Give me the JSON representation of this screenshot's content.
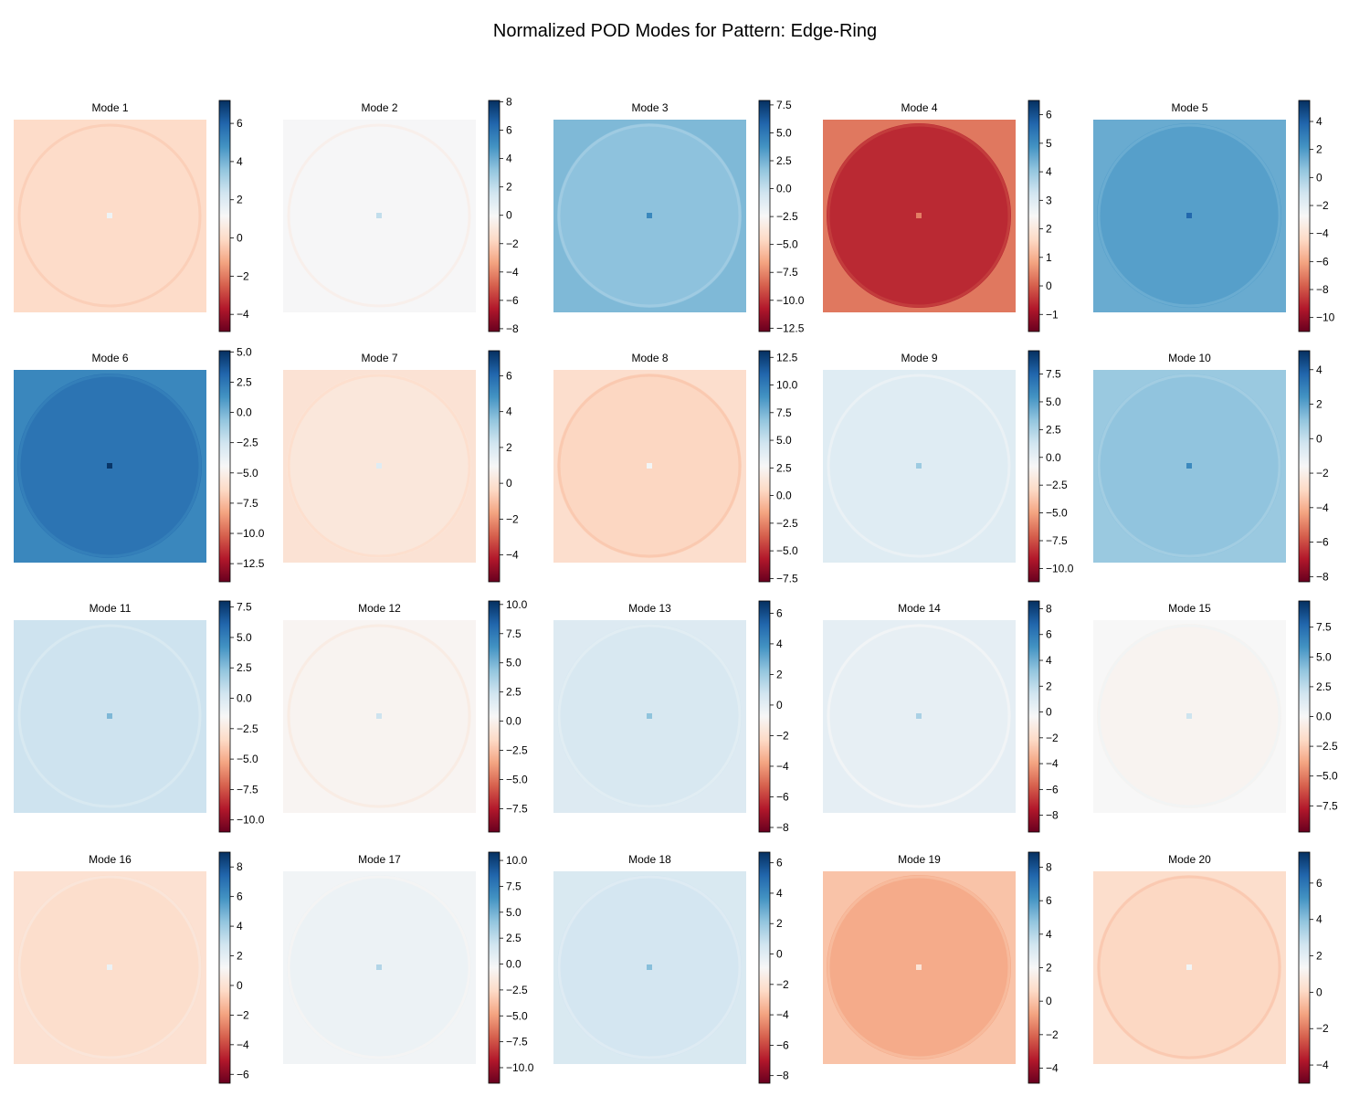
{
  "figure": {
    "title": "Normalized POD Modes for Pattern: Edge-Ring"
  },
  "colormap": {
    "name": "RdBu",
    "stops": [
      "#67001f",
      "#b2182b",
      "#d6604d",
      "#f4a582",
      "#fddbc7",
      "#f7f7f7",
      "#d1e5f0",
      "#92c5de",
      "#4393c3",
      "#2166ac",
      "#053061"
    ]
  },
  "chart_data": [
    {
      "type": "heatmap",
      "title": "Mode 1",
      "vmin": -4.9,
      "vmax": 7.2,
      "background": 0.0,
      "interior": 0.0,
      "colorbar_ticks": [
        6,
        4,
        2,
        0,
        -2,
        -4
      ],
      "colorbar_tick_labels": [
        "6",
        "4",
        "2",
        "0",
        "−2",
        "−4"
      ]
    },
    {
      "type": "heatmap",
      "title": "Mode 2",
      "vmin": -8.2,
      "vmax": 8.1,
      "background": 0.0,
      "interior": 0.0,
      "colorbar_ticks": [
        8,
        6,
        4,
        2,
        0,
        -2,
        -4,
        -6,
        -8
      ],
      "colorbar_tick_labels": [
        "8",
        "6",
        "4",
        "2",
        "0",
        "−2",
        "−4",
        "−6",
        "−8"
      ]
    },
    {
      "type": "heatmap",
      "title": "Mode 3",
      "vmin": -12.8,
      "vmax": 7.9,
      "background": 2.2,
      "interior": 1.8,
      "colorbar_ticks": [
        7.5,
        5.0,
        2.5,
        0.0,
        -2.5,
        -5.0,
        -7.5,
        -10.0,
        -12.5
      ],
      "colorbar_tick_labels": [
        "7.5",
        "5.0",
        "2.5",
        "0.0",
        "−2.5",
        "−5.0",
        "−7.5",
        "−10.0",
        "−12.5"
      ]
    },
    {
      "type": "heatmap",
      "title": "Mode 4",
      "vmin": -1.6,
      "vmax": 6.5,
      "background": 0.3,
      "interior": -0.6,
      "colorbar_ticks": [
        6,
        5,
        4,
        3,
        2,
        1,
        0,
        -1
      ],
      "colorbar_tick_labels": [
        "6",
        "5",
        "4",
        "3",
        "2",
        "1",
        "0",
        "−1"
      ]
    },
    {
      "type": "heatmap",
      "title": "Mode 5",
      "vmin": -11.0,
      "vmax": 5.5,
      "background": 1.4,
      "interior": 1.8,
      "colorbar_ticks": [
        4,
        2,
        0,
        -2,
        -4,
        -6,
        -8,
        -10
      ],
      "colorbar_tick_labels": [
        "4",
        "2",
        "0",
        "−2",
        "−4",
        "−6",
        "−8",
        "−10"
      ]
    },
    {
      "type": "heatmap",
      "title": "Mode 6",
      "vmin": -14.0,
      "vmax": 5.1,
      "background": 1.8,
      "interior": 2.6,
      "colorbar_ticks": [
        5.0,
        2.5,
        0.0,
        -2.5,
        -5.0,
        -7.5,
        -10.0,
        -12.5
      ],
      "colorbar_tick_labels": [
        "5.0",
        "2.5",
        "0.0",
        "−2.5",
        "−5.0",
        "−7.5",
        "−10.0",
        "−12.5"
      ]
    },
    {
      "type": "heatmap",
      "title": "Mode 7",
      "vmin": -5.5,
      "vmax": 7.4,
      "background": 0.0,
      "interior": 0.2,
      "colorbar_ticks": [
        6,
        4,
        2,
        0,
        -2,
        -4
      ],
      "colorbar_tick_labels": [
        "6",
        "4",
        "2",
        "0",
        "−2",
        "−4"
      ]
    },
    {
      "type": "heatmap",
      "title": "Mode 8",
      "vmin": -7.8,
      "vmax": 13.1,
      "background": 0.8,
      "interior": 0.4,
      "colorbar_ticks": [
        12.5,
        10.0,
        7.5,
        5.0,
        2.5,
        0.0,
        -2.5,
        -5.0,
        -7.5
      ],
      "colorbar_tick_labels": [
        "12.5",
        "10.0",
        "7.5",
        "5.0",
        "2.5",
        "0.0",
        "−2.5",
        "−5.0",
        "−7.5"
      ]
    },
    {
      "type": "heatmap",
      "title": "Mode 9",
      "vmin": -11.2,
      "vmax": 9.6,
      "background": 0.5,
      "interior": 0.5,
      "colorbar_ticks": [
        7.5,
        5.0,
        2.5,
        0.0,
        -2.5,
        -5.0,
        -7.5,
        -10.0
      ],
      "colorbar_tick_labels": [
        "7.5",
        "5.0",
        "2.5",
        "0.0",
        "−2.5",
        "−5.0",
        "−7.5",
        "−10.0"
      ]
    },
    {
      "type": "heatmap",
      "title": "Mode 10",
      "vmin": -8.3,
      "vmax": 5.1,
      "background": 0.9,
      "interior": 1.1,
      "colorbar_ticks": [
        4,
        2,
        0,
        -2,
        -4,
        -6,
        -8
      ],
      "colorbar_tick_labels": [
        "4",
        "2",
        "0",
        "−2",
        "−4",
        "−6",
        "−8"
      ]
    },
    {
      "type": "heatmap",
      "title": "Mode 11",
      "vmin": -11.0,
      "vmax": 8.0,
      "background": 0.5,
      "interior": 0.5,
      "colorbar_ticks": [
        7.5,
        5.0,
        2.5,
        0.0,
        -2.5,
        -5.0,
        -7.5,
        -10.0
      ],
      "colorbar_tick_labels": [
        "7.5",
        "5.0",
        "2.5",
        "0.0",
        "−2.5",
        "−5.0",
        "−7.5",
        "−10.0"
      ]
    },
    {
      "type": "heatmap",
      "title": "Mode 12",
      "vmin": -9.5,
      "vmax": 10.3,
      "background": 0.2,
      "interior": 0.1,
      "colorbar_ticks": [
        10.0,
        7.5,
        5.0,
        2.5,
        0.0,
        -2.5,
        -5.0,
        -7.5
      ],
      "colorbar_tick_labels": [
        "10.0",
        "7.5",
        "5.0",
        "2.5",
        "0.0",
        "−2.5",
        "−5.0",
        "−7.5"
      ]
    },
    {
      "type": "heatmap",
      "title": "Mode 13",
      "vmin": -8.3,
      "vmax": 6.8,
      "background": 0.3,
      "interior": 0.5,
      "colorbar_ticks": [
        6,
        4,
        2,
        0,
        -2,
        -4,
        -6,
        -8
      ],
      "colorbar_tick_labels": [
        "6",
        "4",
        "2",
        "0",
        "−2",
        "−4",
        "−6",
        "−8"
      ]
    },
    {
      "type": "heatmap",
      "title": "Mode 14",
      "vmin": -9.3,
      "vmax": 8.6,
      "background": 0.5,
      "interior": 0.4,
      "colorbar_ticks": [
        8,
        6,
        4,
        2,
        0,
        -2,
        -4,
        -6,
        -8
      ],
      "colorbar_tick_labels": [
        "8",
        "6",
        "4",
        "2",
        "0",
        "−2",
        "−4",
        "−6",
        "−8"
      ]
    },
    {
      "type": "heatmap",
      "title": "Mode 15",
      "vmin": -9.7,
      "vmax": 9.7,
      "background": 0.0,
      "interior": -0.3,
      "colorbar_ticks": [
        7.5,
        5.0,
        2.5,
        0.0,
        -2.5,
        -5.0,
        -7.5
      ],
      "colorbar_tick_labels": [
        "7.5",
        "5.0",
        "2.5",
        "0.0",
        "−2.5",
        "−5.0",
        "−7.5"
      ]
    },
    {
      "type": "heatmap",
      "title": "Mode 16",
      "vmin": -6.6,
      "vmax": 9.0,
      "background": 0.0,
      "interior": -0.2,
      "colorbar_ticks": [
        8,
        6,
        4,
        2,
        0,
        -2,
        -4,
        -6
      ],
      "colorbar_tick_labels": [
        "8",
        "6",
        "4",
        "2",
        "0",
        "−2",
        "−4",
        "−6"
      ]
    },
    {
      "type": "heatmap",
      "title": "Mode 17",
      "vmin": -11.5,
      "vmax": 10.8,
      "background": 0.0,
      "interior": 0.3,
      "colorbar_ticks": [
        10.0,
        7.5,
        5.0,
        2.5,
        0.0,
        -2.5,
        -5.0,
        -7.5,
        -10.0
      ],
      "colorbar_tick_labels": [
        "10.0",
        "7.5",
        "5.0",
        "2.5",
        "0.0",
        "−2.5",
        "−5.0",
        "−7.5",
        "−10.0"
      ]
    },
    {
      "type": "heatmap",
      "title": "Mode 18",
      "vmin": -8.5,
      "vmax": 6.7,
      "background": 0.3,
      "interior": 0.5,
      "colorbar_ticks": [
        6,
        4,
        2,
        0,
        -2,
        -4,
        -6,
        -8
      ],
      "colorbar_tick_labels": [
        "6",
        "4",
        "2",
        "0",
        "−2",
        "−4",
        "−6",
        "−8"
      ]
    },
    {
      "type": "heatmap",
      "title": "Mode 19",
      "vmin": -4.9,
      "vmax": 8.9,
      "background": 0.0,
      "interior": -0.6,
      "colorbar_ticks": [
        8,
        6,
        4,
        2,
        0,
        -2,
        -4
      ],
      "colorbar_tick_labels": [
        "8",
        "6",
        "4",
        "2",
        "0",
        "−2",
        "−4"
      ]
    },
    {
      "type": "heatmap",
      "title": "Mode 20",
      "vmin": -5.0,
      "vmax": 7.7,
      "background": 0.2,
      "interior": 0.0,
      "colorbar_ticks": [
        6,
        4,
        2,
        0,
        -2,
        -4
      ],
      "colorbar_tick_labels": [
        "6",
        "4",
        "2",
        "0",
        "−2",
        "−4"
      ]
    }
  ]
}
